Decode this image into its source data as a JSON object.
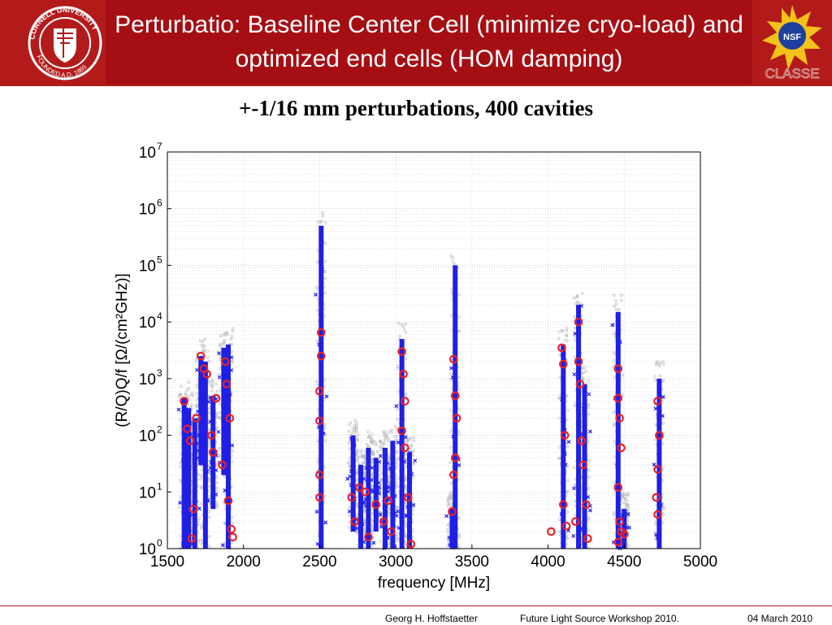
{
  "slide": {
    "title": "Perturbatio: Baseline Center Cell (minimize cryo-load) and optimized end cells (HOM damping)",
    "seal_text": "CORNELL UNIVERSITY FOUNDED A.D. 1865",
    "nsf_text": "NSF",
    "classe_text": "CLASSE",
    "footer": {
      "author": "Georg H. Hoffstaetter",
      "event": "Future Light Source Workshop 2010.",
      "date": "04 March 2010"
    }
  },
  "colors": {
    "header": "#b31b1b",
    "header_inner": "#a50f14",
    "series_blue": "#1f1fe6",
    "series_red": "#e8202a",
    "background_gray": "#b0b0b0"
  },
  "chart_data": {
    "type": "scatter",
    "title": "+-1/16 mm perturbations, 400 cavities",
    "xlabel": "frequency [MHz]",
    "ylabel": "(R/Q)Q/f  [Ω/(cm²GHz)]",
    "xscale": "linear",
    "yscale": "log",
    "xlim": [
      1500,
      5000
    ],
    "ylim": [
      1,
      10000000
    ],
    "xticks": [
      "1500",
      "2000",
      "2500",
      "3000",
      "3500",
      "4000",
      "4500",
      "5000"
    ],
    "yticks": [
      {
        "base": "10",
        "exp": "0"
      },
      {
        "base": "10",
        "exp": "1"
      },
      {
        "base": "10",
        "exp": "2"
      },
      {
        "base": "10",
        "exp": "3"
      },
      {
        "base": "10",
        "exp": "4"
      },
      {
        "base": "10",
        "exp": "5"
      },
      {
        "base": "10",
        "exp": "6"
      },
      {
        "base": "10",
        "exp": "7"
      }
    ],
    "grid": true,
    "series": [
      {
        "name": "",
        "marker": "vertical-band",
        "bands": [
          {
            "x": 1610,
            "ymin": 1,
            "ymax": 450
          },
          {
            "x": 1640,
            "ymin": 1,
            "ymax": 300
          },
          {
            "x": 1680,
            "ymin": 1,
            "ymax": 200
          },
          {
            "x": 1720,
            "ymin": 30,
            "ymax": 2500
          },
          {
            "x": 1750,
            "ymin": 1,
            "ymax": 2000
          },
          {
            "x": 1800,
            "ymin": 5,
            "ymax": 500
          },
          {
            "x": 1870,
            "ymin": 20,
            "ymax": 3500
          },
          {
            "x": 1900,
            "ymin": 1,
            "ymax": 4000
          },
          {
            "x": 2510,
            "ymin": 1,
            "ymax": 500000
          },
          {
            "x": 2720,
            "ymin": 2,
            "ymax": 100
          },
          {
            "x": 2770,
            "ymin": 1,
            "ymax": 30
          },
          {
            "x": 2820,
            "ymin": 1,
            "ymax": 60
          },
          {
            "x": 2870,
            "ymin": 2,
            "ymax": 40
          },
          {
            "x": 2930,
            "ymin": 1,
            "ymax": 60
          },
          {
            "x": 2980,
            "ymin": 1,
            "ymax": 80
          },
          {
            "x": 3040,
            "ymin": 1,
            "ymax": 5000
          },
          {
            "x": 3090,
            "ymin": 1,
            "ymax": 50
          },
          {
            "x": 3390,
            "ymin": 1,
            "ymax": 100000
          },
          {
            "x": 3370,
            "ymin": 1,
            "ymax": 5
          },
          {
            "x": 4100,
            "ymin": 1,
            "ymax": 4000
          },
          {
            "x": 4200,
            "ymin": 1,
            "ymax": 20000
          },
          {
            "x": 4240,
            "ymin": 1,
            "ymax": 800
          },
          {
            "x": 4460,
            "ymin": 1,
            "ymax": 15000
          },
          {
            "x": 4500,
            "ymin": 1,
            "ymax": 5
          },
          {
            "x": 4730,
            "ymin": 1,
            "ymax": 1000
          }
        ]
      },
      {
        "name": "",
        "marker": "o",
        "points": [
          {
            "x": 1610,
            "y": 400
          },
          {
            "x": 1630,
            "y": 130
          },
          {
            "x": 1650,
            "y": 80
          },
          {
            "x": 1660,
            "y": 1.5
          },
          {
            "x": 1670,
            "y": 5
          },
          {
            "x": 1690,
            "y": 200
          },
          {
            "x": 1720,
            "y": 2500
          },
          {
            "x": 1740,
            "y": 1500
          },
          {
            "x": 1760,
            "y": 1200
          },
          {
            "x": 1790,
            "y": 100
          },
          {
            "x": 1800,
            "y": 50
          },
          {
            "x": 1820,
            "y": 450
          },
          {
            "x": 1860,
            "y": 30
          },
          {
            "x": 1880,
            "y": 2000
          },
          {
            "x": 1890,
            "y": 800
          },
          {
            "x": 1900,
            "y": 7
          },
          {
            "x": 1910,
            "y": 200
          },
          {
            "x": 1920,
            "y": 2.2
          },
          {
            "x": 1930,
            "y": 1.6
          },
          {
            "x": 2500,
            "y": 600
          },
          {
            "x": 2510,
            "y": 6500
          },
          {
            "x": 2510,
            "y": 2500
          },
          {
            "x": 2500,
            "y": 180
          },
          {
            "x": 2500,
            "y": 20
          },
          {
            "x": 2500,
            "y": 8
          },
          {
            "x": 2710,
            "y": 8
          },
          {
            "x": 2730,
            "y": 3
          },
          {
            "x": 2760,
            "y": 12
          },
          {
            "x": 2800,
            "y": 10
          },
          {
            "x": 2820,
            "y": 1.6
          },
          {
            "x": 2870,
            "y": 6
          },
          {
            "x": 2920,
            "y": 3
          },
          {
            "x": 2950,
            "y": 7
          },
          {
            "x": 2970,
            "y": 2
          },
          {
            "x": 3040,
            "y": 3000
          },
          {
            "x": 3050,
            "y": 1200
          },
          {
            "x": 3060,
            "y": 400
          },
          {
            "x": 3040,
            "y": 120
          },
          {
            "x": 3060,
            "y": 60
          },
          {
            "x": 3080,
            "y": 8
          },
          {
            "x": 3100,
            "y": 1.2
          },
          {
            "x": 3380,
            "y": 2200
          },
          {
            "x": 3390,
            "y": 500
          },
          {
            "x": 3400,
            "y": 200
          },
          {
            "x": 3390,
            "y": 40
          },
          {
            "x": 3380,
            "y": 20
          },
          {
            "x": 3370,
            "y": 4.5
          },
          {
            "x": 4020,
            "y": 2
          },
          {
            "x": 4090,
            "y": 3500
          },
          {
            "x": 4100,
            "y": 1800
          },
          {
            "x": 4110,
            "y": 100
          },
          {
            "x": 4100,
            "y": 6
          },
          {
            "x": 4120,
            "y": 2.5
          },
          {
            "x": 4180,
            "y": 3
          },
          {
            "x": 4200,
            "y": 10000
          },
          {
            "x": 4200,
            "y": 2000
          },
          {
            "x": 4210,
            "y": 800
          },
          {
            "x": 4220,
            "y": 80
          },
          {
            "x": 4230,
            "y": 30
          },
          {
            "x": 4250,
            "y": 6
          },
          {
            "x": 4260,
            "y": 1.5
          },
          {
            "x": 4460,
            "y": 1500
          },
          {
            "x": 4460,
            "y": 450
          },
          {
            "x": 4470,
            "y": 200
          },
          {
            "x": 4480,
            "y": 60
          },
          {
            "x": 4460,
            "y": 12
          },
          {
            "x": 4470,
            "y": 3
          },
          {
            "x": 4480,
            "y": 2
          },
          {
            "x": 4500,
            "y": 1.8
          },
          {
            "x": 4460,
            "y": 1.3
          },
          {
            "x": 4720,
            "y": 400
          },
          {
            "x": 4730,
            "y": 100
          },
          {
            "x": 4720,
            "y": 25
          },
          {
            "x": 4710,
            "y": 8
          },
          {
            "x": 4720,
            "y": 4
          }
        ]
      }
    ]
  }
}
